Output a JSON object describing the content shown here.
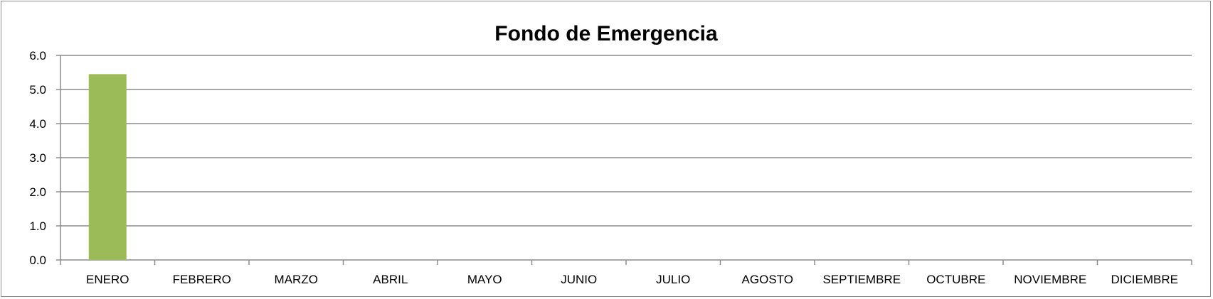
{
  "chart_data": {
    "type": "bar",
    "title": "Fondo de Emergencia",
    "xlabel": "",
    "ylabel": "",
    "categories": [
      "ENERO",
      "FEBRERO",
      "MARZO",
      "ABRIL",
      "MAYO",
      "JUNIO",
      "JULIO",
      "AGOSTO",
      "SEPTIEMBRE",
      "OCTUBRE",
      "NOVIEMBRE",
      "DICIEMBRE"
    ],
    "series": [
      {
        "values": [
          5.45,
          0,
          0,
          0,
          0,
          0,
          0,
          0,
          0,
          0,
          0,
          0
        ],
        "color": "#9bbb59"
      }
    ],
    "ylim": [
      0,
      6
    ],
    "yticks": [
      0,
      1,
      2,
      3,
      4,
      5,
      6
    ],
    "ytick_labels": [
      "0.0",
      "1.0",
      "2.0",
      "3.0",
      "4.0",
      "5.0",
      "6.0"
    ],
    "grid": true,
    "legend": "none"
  }
}
